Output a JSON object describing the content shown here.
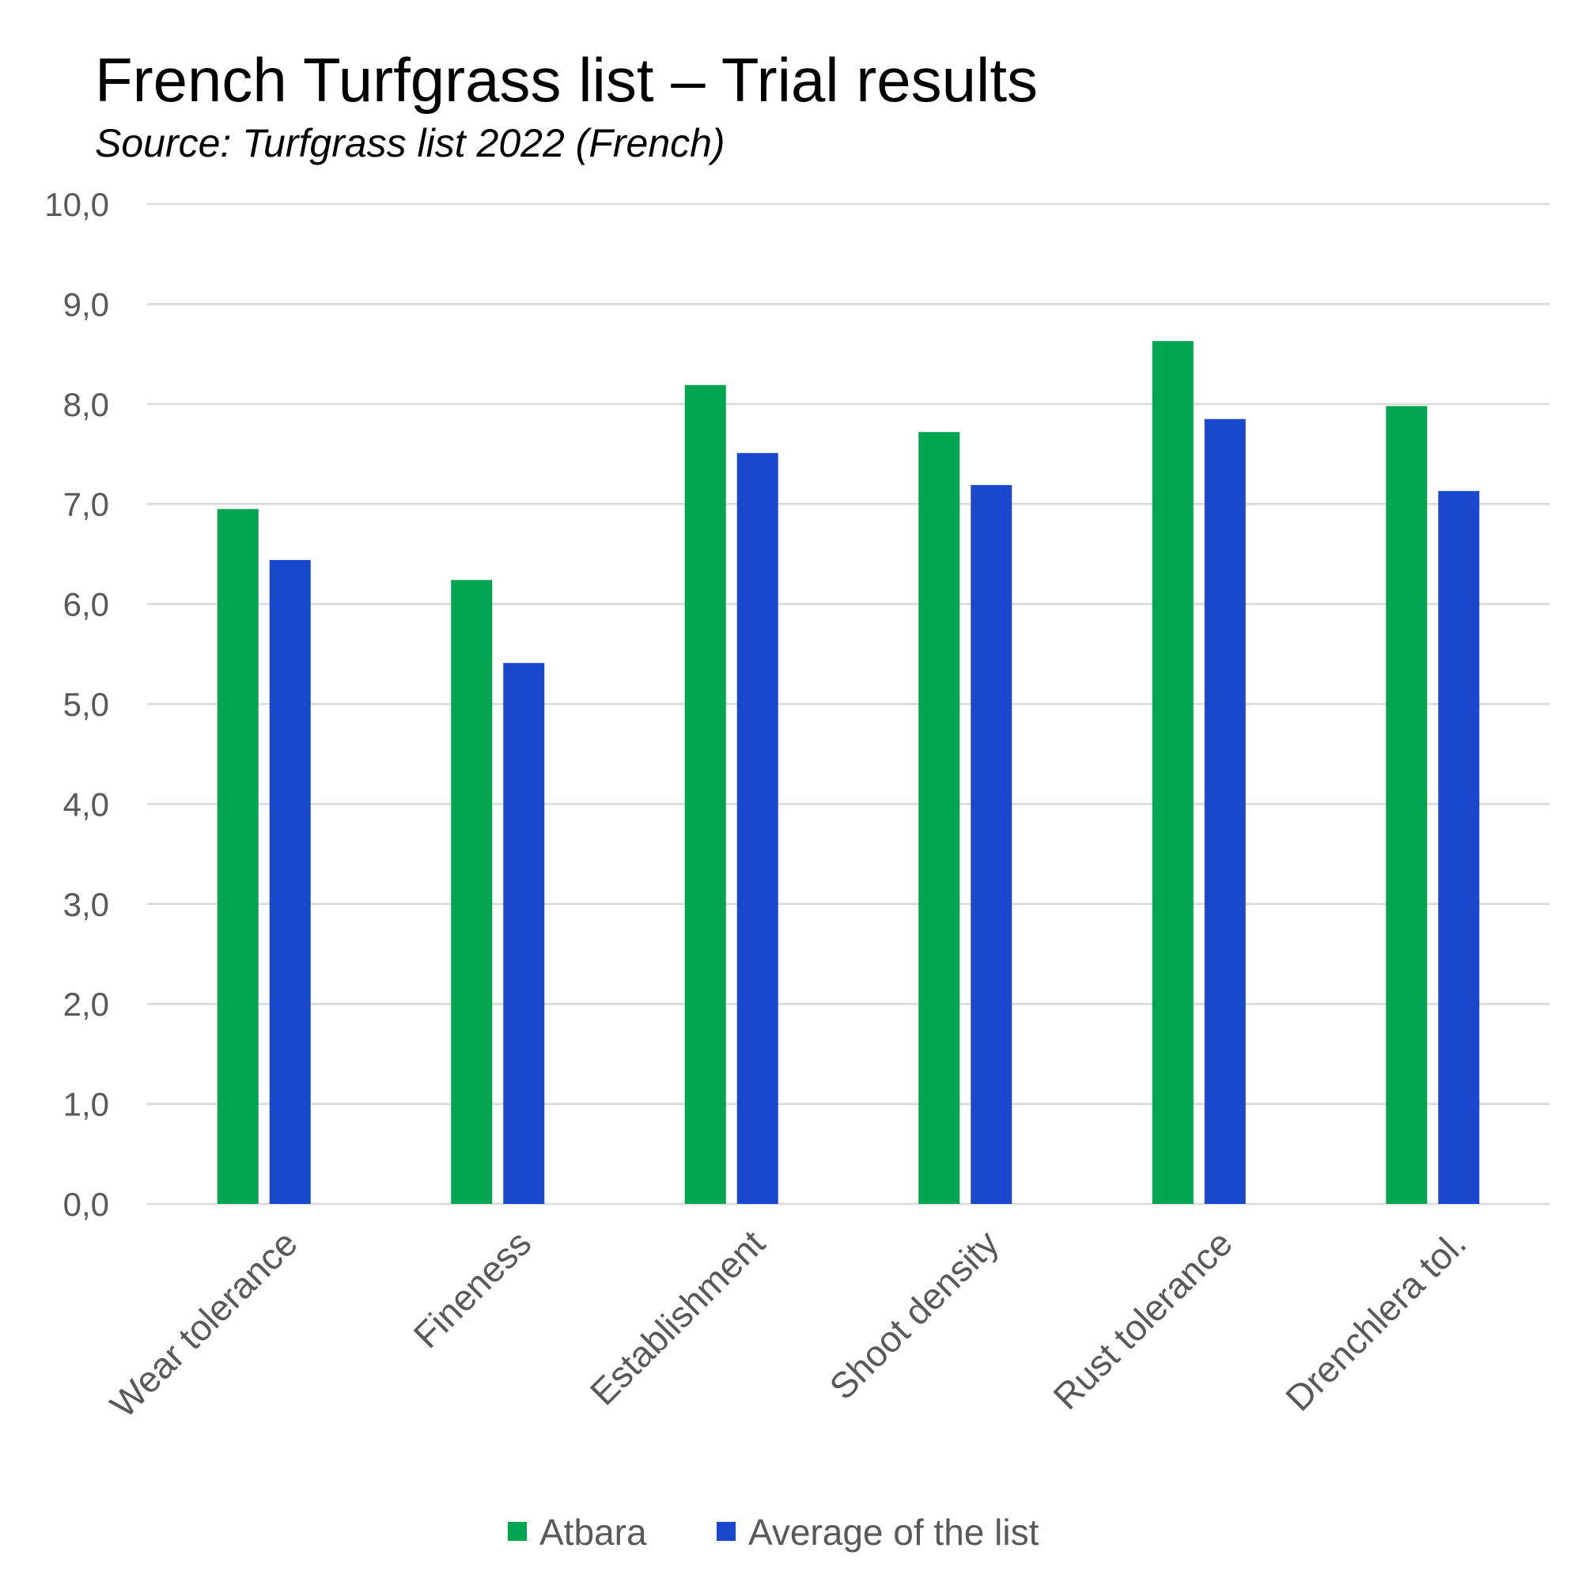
{
  "chart_data": {
    "type": "bar",
    "title": "French Turfgrass list – Trial results",
    "subtitle": "Source: Turfgrass list 2022 (French)",
    "xlabel": "",
    "ylabel": "",
    "ylim": [
      0,
      10
    ],
    "yticks": [
      "0,0",
      "1,0",
      "2,0",
      "3,0",
      "4,0",
      "5,0",
      "6,0",
      "7,0",
      "8,0",
      "9,0",
      "10,0"
    ],
    "grid": true,
    "legend_position": "bottom",
    "categories": [
      "Wear tolerance",
      "Fineness",
      "Establishment",
      "Shoot density",
      "Rust tolerance",
      "Drenchlera tol."
    ],
    "series": [
      {
        "name": "Atbara",
        "color": "#00A551",
        "values": [
          6.95,
          6.24,
          8.19,
          7.72,
          8.63,
          7.98
        ]
      },
      {
        "name": "Average of the list",
        "color": "#1A48CC",
        "values": [
          6.44,
          5.41,
          7.51,
          7.19,
          7.85,
          7.13
        ]
      }
    ]
  }
}
